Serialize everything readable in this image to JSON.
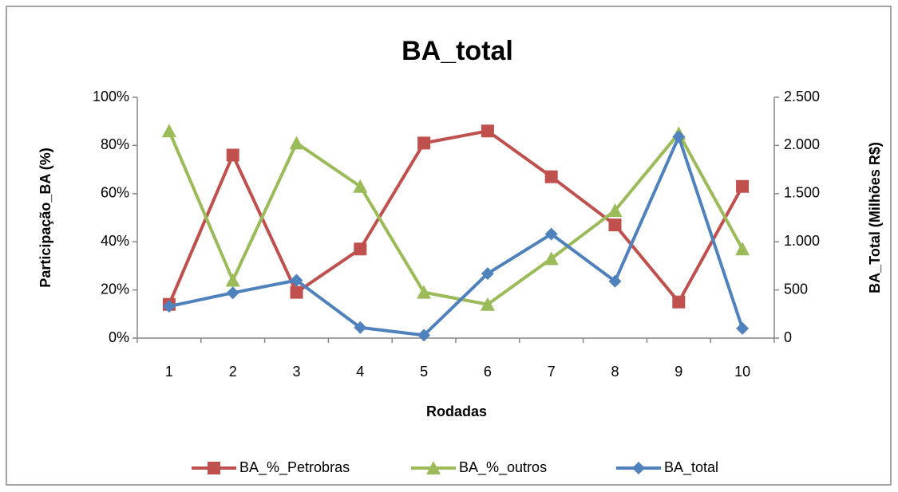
{
  "chart_data": {
    "type": "line",
    "title": "BA_total",
    "x_label": "Rodadas",
    "y_label": "Participação_BA (%)",
    "y2_label": "BA_Total (Milhões R$)",
    "categories": [
      "1",
      "2",
      "3",
      "4",
      "5",
      "6",
      "7",
      "8",
      "9",
      "10"
    ],
    "ylim": [
      0,
      100
    ],
    "yticks": [
      {
        "value": 0,
        "label": "0%"
      },
      {
        "value": 20,
        "label": "20%"
      },
      {
        "value": 40,
        "label": "40%"
      },
      {
        "value": 60,
        "label": "60%"
      },
      {
        "value": 80,
        "label": "80%"
      },
      {
        "value": 100,
        "label": "100%"
      }
    ],
    "y2lim": [
      0,
      2500
    ],
    "y2ticks": [
      0,
      500,
      {
        "value": 1000,
        "label": "1.000"
      },
      {
        "value": 1500,
        "label": "1.500"
      },
      {
        "value": 2000,
        "label": "2.000"
      },
      {
        "value": 2500,
        "label": "2.500"
      }
    ],
    "legend": "bottom",
    "series": [
      {
        "name": "BA_%_Petrobras",
        "color": "#c0504d",
        "marker": "square",
        "values": [
          14,
          76,
          19,
          37,
          81,
          86,
          67,
          47,
          15,
          63
        ]
      },
      {
        "name": "BA_%_outros",
        "color": "#9bbb59",
        "marker": "triangle",
        "values": [
          86,
          24,
          81,
          63,
          19,
          14,
          33,
          53,
          85,
          37
        ]
      },
      {
        "name": "BA_total",
        "color": "#4f81bd",
        "marker": "diamond",
        "axis": "y2",
        "values": [
          330,
          470,
          600,
          110,
          30,
          670,
          1080,
          590,
          2090,
          100
        ]
      }
    ]
  }
}
